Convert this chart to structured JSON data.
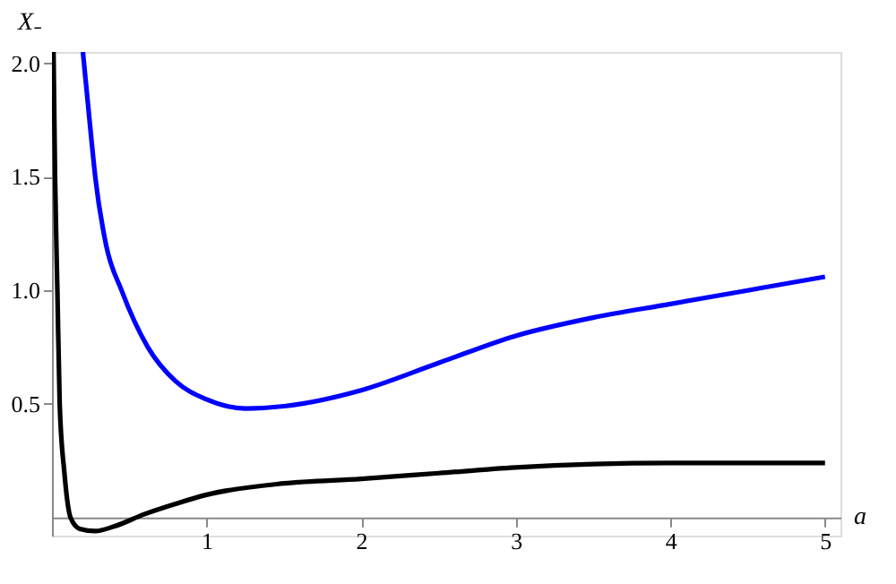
{
  "chart_data": {
    "type": "line",
    "xlabel": "a",
    "ylabel": "X₋",
    "xlim": [
      0,
      5.1
    ],
    "ylim": [
      -0.08,
      2.05
    ],
    "xticks": [
      1,
      2,
      3,
      4,
      5
    ],
    "yticks": [
      0.5,
      {
        "value": 1,
        "label": "1.0"
      },
      1.5,
      {
        "value": 2,
        "label": "2.0"
      }
    ],
    "grid": false,
    "marker": "none",
    "line_style": "solid",
    "series": [
      {
        "color": "#0000ff",
        "x": [
          0.2,
          0.25,
          0.28,
          0.35,
          0.45,
          0.62,
          0.8,
          1.0,
          1.25,
          1.5,
          2,
          2.5,
          3,
          3.5,
          4,
          4.5,
          5
        ],
        "values": [
          2.05,
          1.7,
          1.5,
          1.2,
          1.0,
          0.75,
          0.6,
          0.52,
          0.48,
          0.49,
          0.56,
          0.68,
          0.8,
          0.88,
          0.94,
          1.0,
          1.06
        ]
      },
      {
        "color": "#000000",
        "x": [
          0.01,
          0.02,
          0.035,
          0.05,
          0.08,
          0.12,
          0.18,
          0.28,
          0.4,
          0.6,
          0.8,
          1,
          1.5,
          2,
          2.5,
          3,
          3.5,
          4,
          4.5,
          5
        ],
        "values": [
          2.05,
          1.5,
          1.0,
          0.5,
          0.2,
          0.0,
          -0.05,
          -0.06,
          -0.04,
          0.015,
          0.06,
          0.1,
          0.15,
          0.17,
          0.195,
          0.22,
          0.235,
          0.24,
          0.24,
          0.24
        ]
      }
    ]
  }
}
